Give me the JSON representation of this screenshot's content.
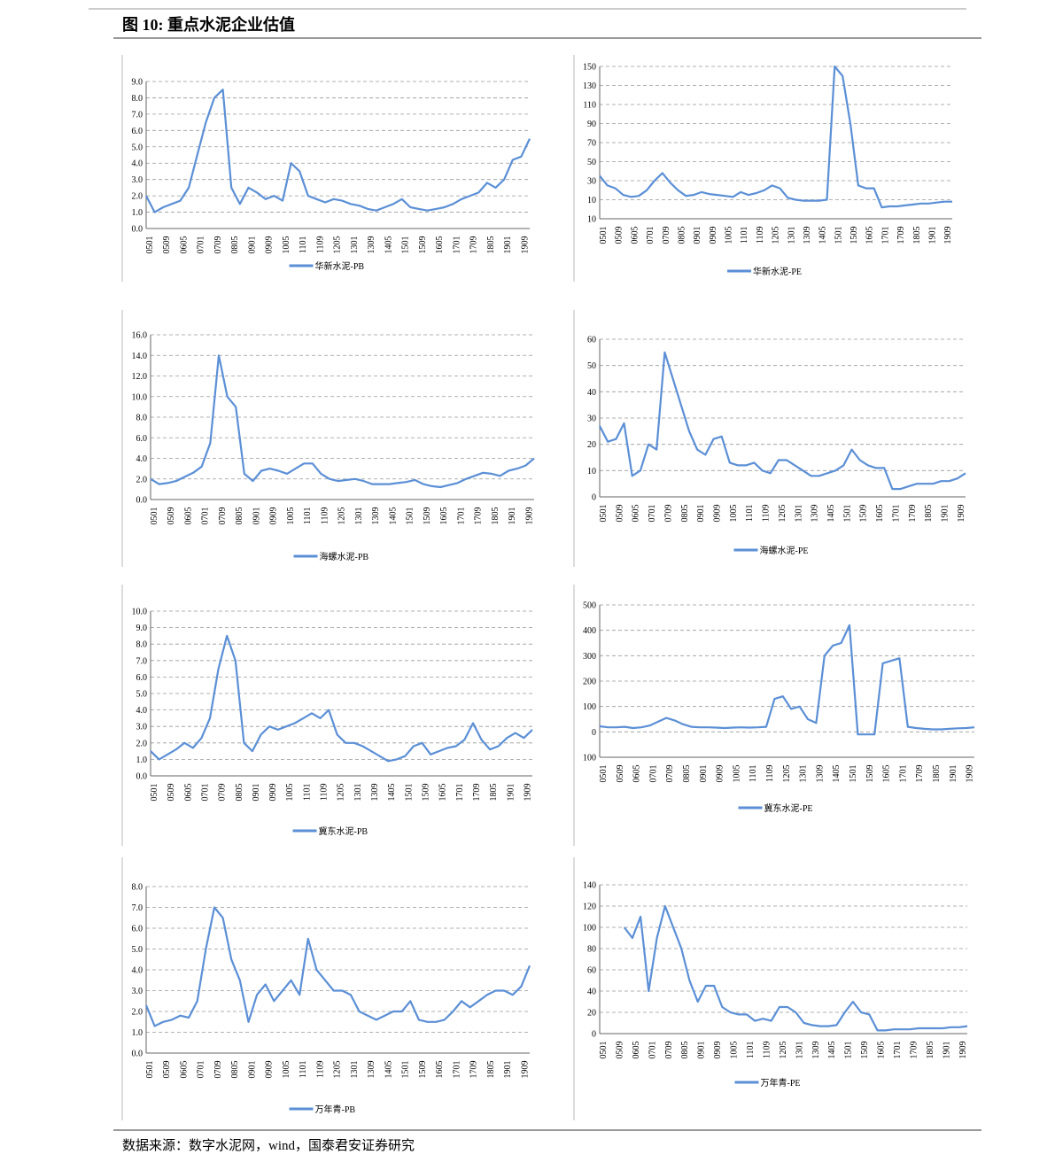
{
  "header": {
    "title": "图 10:  重点水泥企业估值"
  },
  "footer": {
    "source": "数据来源：数字水泥网，wind，国泰君安证券研究"
  },
  "chart_data": [
    {
      "type": "line",
      "categories": [
        "0501",
        null,
        "0509",
        null,
        "0605",
        null,
        "0701",
        null,
        "0709",
        null,
        "0805",
        null,
        "0901",
        null,
        "0909",
        null,
        "1005",
        null,
        "1101",
        null,
        "1109",
        null,
        "1205",
        null,
        "1301",
        null,
        "1309",
        null,
        "1405",
        null,
        "1501",
        null,
        "1509",
        null,
        "1605",
        null,
        "1701",
        null,
        "1709",
        null,
        "1805",
        null,
        "1901",
        null,
        "1909",
        null
      ],
      "series": [
        {
          "name": "华新水泥-PB",
          "color": "#5b8fd6",
          "values": [
            2.0,
            1.0,
            1.3,
            1.5,
            1.7,
            2.5,
            4.5,
            6.5,
            8.0,
            8.5,
            2.5,
            1.5,
            2.5,
            2.2,
            1.8,
            2.0,
            1.7,
            4.0,
            3.5,
            2.0,
            1.8,
            1.6,
            1.8,
            1.7,
            1.5,
            1.4,
            1.2,
            1.1,
            1.3,
            1.5,
            1.8,
            1.3,
            1.2,
            1.1,
            1.2,
            1.3,
            1.5,
            1.8,
            2.0,
            2.2,
            2.8,
            2.5,
            3.0,
            4.2,
            4.4,
            5.5
          ]
        }
      ],
      "ylim": [
        0,
        9
      ],
      "yticks": [
        {
          "value": 0,
          "label": "0.0"
        },
        {
          "value": 1,
          "label": "1.0"
        },
        {
          "value": 2,
          "label": "2.0"
        },
        {
          "value": 3,
          "label": "3.0"
        },
        {
          "value": 4,
          "label": "4.0"
        },
        {
          "value": 5,
          "label": "5.0"
        },
        {
          "value": 6,
          "label": "6.0"
        },
        {
          "value": 7,
          "label": "7.0"
        },
        {
          "value": 8,
          "label": "8.0"
        },
        {
          "value": 9,
          "label": "9.0"
        }
      ],
      "grid": true
    },
    {
      "type": "line",
      "categories": [
        "0501",
        null,
        "0509",
        null,
        "0605",
        null,
        "0701",
        null,
        "0709",
        null,
        "0805",
        null,
        "0901",
        null,
        "0909",
        null,
        "1005",
        null,
        "1101",
        null,
        "1109",
        null,
        "1205",
        null,
        "1301",
        null,
        "1309",
        null,
        "1405",
        null,
        "1501",
        null,
        "1509",
        null,
        "1605",
        null,
        "1701",
        null,
        "1709",
        null,
        "1805",
        null,
        "1901",
        null,
        "1909",
        null
      ],
      "series": [
        {
          "name": "华新水泥-PE",
          "color": "#5b8fd6",
          "values": [
            35,
            25,
            22,
            15,
            13,
            14,
            20,
            30,
            38,
            28,
            20,
            14,
            15,
            18,
            16,
            15,
            14,
            13,
            18,
            15,
            17,
            20,
            25,
            22,
            12,
            10,
            9,
            9,
            9,
            10,
            150,
            140,
            90,
            25,
            22,
            22,
            2,
            3,
            3,
            4,
            5,
            6,
            6,
            7,
            8,
            8
          ]
        }
      ],
      "ylim": [
        -10,
        150
      ],
      "yticks": [
        {
          "value": -10,
          "label": "10",
          "color": "#e00000"
        },
        10,
        30,
        50,
        70,
        90,
        110,
        130,
        150
      ],
      "grid": true
    },
    {
      "type": "line",
      "categories": [
        "0501",
        null,
        "0509",
        null,
        "0605",
        null,
        "0701",
        null,
        "0709",
        null,
        "0805",
        null,
        "0901",
        null,
        "0909",
        null,
        "1005",
        null,
        "1101",
        null,
        "1109",
        null,
        "1205",
        null,
        "1301",
        null,
        "1309",
        null,
        "1405",
        null,
        "1501",
        null,
        "1509",
        null,
        "1605",
        null,
        "1701",
        null,
        "1709",
        null,
        "1805",
        null,
        "1901",
        null,
        "1909",
        null
      ],
      "series": [
        {
          "name": "海螺水泥-PB",
          "color": "#5b8fd6",
          "values": [
            2.0,
            1.5,
            1.6,
            1.8,
            2.2,
            2.6,
            3.2,
            5.5,
            14,
            10,
            9,
            2.5,
            1.8,
            2.8,
            3.0,
            2.8,
            2.5,
            3.0,
            3.5,
            3.5,
            2.5,
            2.0,
            1.8,
            1.9,
            2.0,
            1.8,
            1.5,
            1.5,
            1.5,
            1.6,
            1.7,
            1.9,
            1.5,
            1.3,
            1.2,
            1.4,
            1.6,
            2.0,
            2.3,
            2.6,
            2.5,
            2.3,
            2.8,
            3.0,
            3.3,
            4.0
          ]
        }
      ],
      "ylim": [
        0,
        16
      ],
      "yticks": [
        {
          "value": 0,
          "label": "0.0"
        },
        {
          "value": 2,
          "label": "2.0"
        },
        {
          "value": 4,
          "label": "4.0"
        },
        {
          "value": 6,
          "label": "6.0"
        },
        {
          "value": 8,
          "label": "8.0"
        },
        {
          "value": 10,
          "label": "10.0"
        },
        {
          "value": 12,
          "label": "12.0"
        },
        {
          "value": 14,
          "label": "14.0"
        },
        {
          "value": 16,
          "label": "16.0"
        }
      ],
      "grid": true
    },
    {
      "type": "line",
      "categories": [
        "0501",
        null,
        "0509",
        null,
        "0605",
        null,
        "0701",
        null,
        "0709",
        null,
        "0805",
        null,
        "0901",
        null,
        "0909",
        null,
        "1005",
        null,
        "1101",
        null,
        "1109",
        null,
        "1205",
        null,
        "1301",
        null,
        "1309",
        null,
        "1405",
        null,
        "1501",
        null,
        "1509",
        null,
        "1605",
        null,
        "1701",
        null,
        "1709",
        null,
        "1805",
        null,
        "1901",
        null,
        "1909",
        null
      ],
      "series": [
        {
          "name": "海螺水泥-PE",
          "color": "#5b8fd6",
          "values": [
            27,
            21,
            22,
            28,
            8,
            10,
            20,
            18,
            55,
            45,
            35,
            25,
            18,
            16,
            22,
            23,
            13,
            12,
            12,
            13,
            10,
            9,
            14,
            14,
            12,
            10,
            8,
            8,
            9,
            10,
            12,
            18,
            14,
            12,
            11,
            11,
            3,
            3,
            4,
            5,
            5,
            5,
            6,
            6,
            7,
            9
          ]
        }
      ],
      "ylim": [
        0,
        60
      ],
      "yticks": [
        0,
        10,
        20,
        30,
        40,
        50,
        60
      ],
      "grid": true
    },
    {
      "type": "line",
      "categories": [
        "0501",
        null,
        "0509",
        null,
        "0605",
        null,
        "0701",
        null,
        "0709",
        null,
        "0805",
        null,
        "0901",
        null,
        "0909",
        null,
        "1005",
        null,
        "1101",
        null,
        "1109",
        null,
        "1205",
        null,
        "1301",
        null,
        "1309",
        null,
        "1405",
        null,
        "1501",
        null,
        "1509",
        null,
        "1605",
        null,
        "1701",
        null,
        "1709",
        null,
        "1805",
        null,
        "1901",
        null,
        "1909",
        null
      ],
      "series": [
        {
          "name": "冀东水泥-PB",
          "color": "#5b8fd6",
          "values": [
            1.5,
            1.0,
            1.3,
            1.6,
            2.0,
            1.7,
            2.3,
            3.5,
            6.5,
            8.5,
            7.0,
            2.0,
            1.5,
            2.5,
            3.0,
            2.8,
            3.0,
            3.2,
            3.5,
            3.8,
            3.5,
            4.0,
            2.5,
            2.0,
            2.0,
            1.8,
            1.5,
            1.2,
            0.9,
            1.0,
            1.2,
            1.8,
            2.0,
            1.3,
            1.5,
            1.7,
            1.8,
            2.2,
            3.2,
            2.2,
            1.6,
            1.8,
            2.3,
            2.6,
            2.3,
            2.8
          ]
        }
      ],
      "ylim": [
        0,
        10
      ],
      "yticks": [
        {
          "value": 0,
          "label": "0.0"
        },
        {
          "value": 1,
          "label": "1.0"
        },
        {
          "value": 2,
          "label": "2.0"
        },
        {
          "value": 3,
          "label": "3.0"
        },
        {
          "value": 4,
          "label": "4.0"
        },
        {
          "value": 5,
          "label": "5.0"
        },
        {
          "value": 6,
          "label": "6.0"
        },
        {
          "value": 7,
          "label": "7.0"
        },
        {
          "value": 8,
          "label": "8.0"
        },
        {
          "value": 9,
          "label": "9.0"
        },
        {
          "value": 10,
          "label": "10.0"
        }
      ],
      "grid": true
    },
    {
      "type": "line",
      "categories": [
        "0501",
        null,
        "0509",
        null,
        "0605",
        null,
        "0701",
        null,
        "0709",
        null,
        "0805",
        null,
        "0901",
        null,
        "0909",
        null,
        "1005",
        null,
        "1101",
        null,
        "1109",
        null,
        "1205",
        null,
        "1301",
        null,
        "1309",
        null,
        "1405",
        null,
        "1501",
        null,
        "1509",
        null,
        "1605",
        null,
        "1701",
        null,
        "1709",
        null,
        "1805",
        null,
        "1901",
        null,
        "1909",
        null
      ],
      "series": [
        {
          "name": "冀东水泥-PE",
          "color": "#5b8fd6",
          "values": [
            22,
            18,
            18,
            20,
            15,
            18,
            25,
            40,
            55,
            45,
            30,
            20,
            18,
            18,
            17,
            15,
            17,
            18,
            17,
            18,
            20,
            130,
            140,
            90,
            100,
            50,
            35,
            300,
            340,
            350,
            420,
            -10,
            -10,
            -10,
            270,
            280,
            290,
            20,
            15,
            12,
            10,
            10,
            12,
            14,
            15,
            18
          ]
        }
      ],
      "ylim": [
        -100,
        500
      ],
      "yticks": [
        {
          "value": -100,
          "label": "100",
          "color": "#e00000"
        },
        0,
        100,
        200,
        300,
        400,
        500
      ],
      "grid": true
    },
    {
      "type": "line",
      "categories": [
        "0501",
        null,
        "0509",
        null,
        "0605",
        null,
        "0701",
        null,
        "0709",
        null,
        "0805",
        null,
        "0901",
        null,
        "0909",
        null,
        "1005",
        null,
        "1101",
        null,
        "1109",
        null,
        "1205",
        null,
        "1301",
        null,
        "1309",
        null,
        "1405",
        null,
        "1501",
        null,
        "1509",
        null,
        "1605",
        null,
        "1701",
        null,
        "1709",
        null,
        "1805",
        null,
        "1901",
        null,
        "1909",
        null
      ],
      "series": [
        {
          "name": "万年青-PB",
          "color": "#5b8fd6",
          "values": [
            2.3,
            1.3,
            1.5,
            1.6,
            1.8,
            1.7,
            2.5,
            5.0,
            7.0,
            6.5,
            4.5,
            3.5,
            1.5,
            2.8,
            3.3,
            2.5,
            3.0,
            3.5,
            2.8,
            5.5,
            4.0,
            3.5,
            3.0,
            3.0,
            2.8,
            2.0,
            1.8,
            1.6,
            1.8,
            2.0,
            2.0,
            2.5,
            1.6,
            1.5,
            1.5,
            1.6,
            2.0,
            2.5,
            2.2,
            2.5,
            2.8,
            3.0,
            3.0,
            2.8,
            3.2,
            4.2
          ]
        }
      ],
      "ylim": [
        0,
        8
      ],
      "yticks": [
        {
          "value": 0,
          "label": "0.0"
        },
        {
          "value": 1,
          "label": "1.0"
        },
        {
          "value": 2,
          "label": "2.0"
        },
        {
          "value": 3,
          "label": "3.0"
        },
        {
          "value": 4,
          "label": "4.0"
        },
        {
          "value": 5,
          "label": "5.0"
        },
        {
          "value": 6,
          "label": "6.0"
        },
        {
          "value": 7,
          "label": "7.0"
        },
        {
          "value": 8,
          "label": "8.0"
        }
      ],
      "grid": true
    },
    {
      "type": "line",
      "categories": [
        "0501",
        null,
        "0509",
        null,
        "0605",
        null,
        "0701",
        null,
        "0709",
        null,
        "0805",
        null,
        "0901",
        null,
        "0909",
        null,
        "1005",
        null,
        "1101",
        null,
        "1109",
        null,
        "1205",
        null,
        "1301",
        null,
        "1309",
        null,
        "1405",
        null,
        "1501",
        null,
        "1509",
        null,
        "1605",
        null,
        "1701",
        null,
        "1709",
        null,
        "1805",
        null,
        "1901",
        null,
        "1909",
        null
      ],
      "series": [
        {
          "name": "万年青-PE",
          "color": "#5b8fd6",
          "values": [
            null,
            null,
            null,
            100,
            90,
            110,
            40,
            90,
            120,
            100,
            80,
            50,
            30,
            45,
            45,
            25,
            20,
            18,
            18,
            12,
            14,
            12,
            25,
            25,
            20,
            10,
            8,
            7,
            7,
            8,
            20,
            30,
            20,
            18,
            3,
            3,
            4,
            4,
            4,
            5,
            5,
            5,
            5,
            6,
            6,
            7
          ]
        }
      ],
      "ylim": [
        0,
        140
      ],
      "yticks": [
        0,
        20,
        40,
        60,
        80,
        100,
        120,
        140
      ],
      "grid": true
    }
  ]
}
